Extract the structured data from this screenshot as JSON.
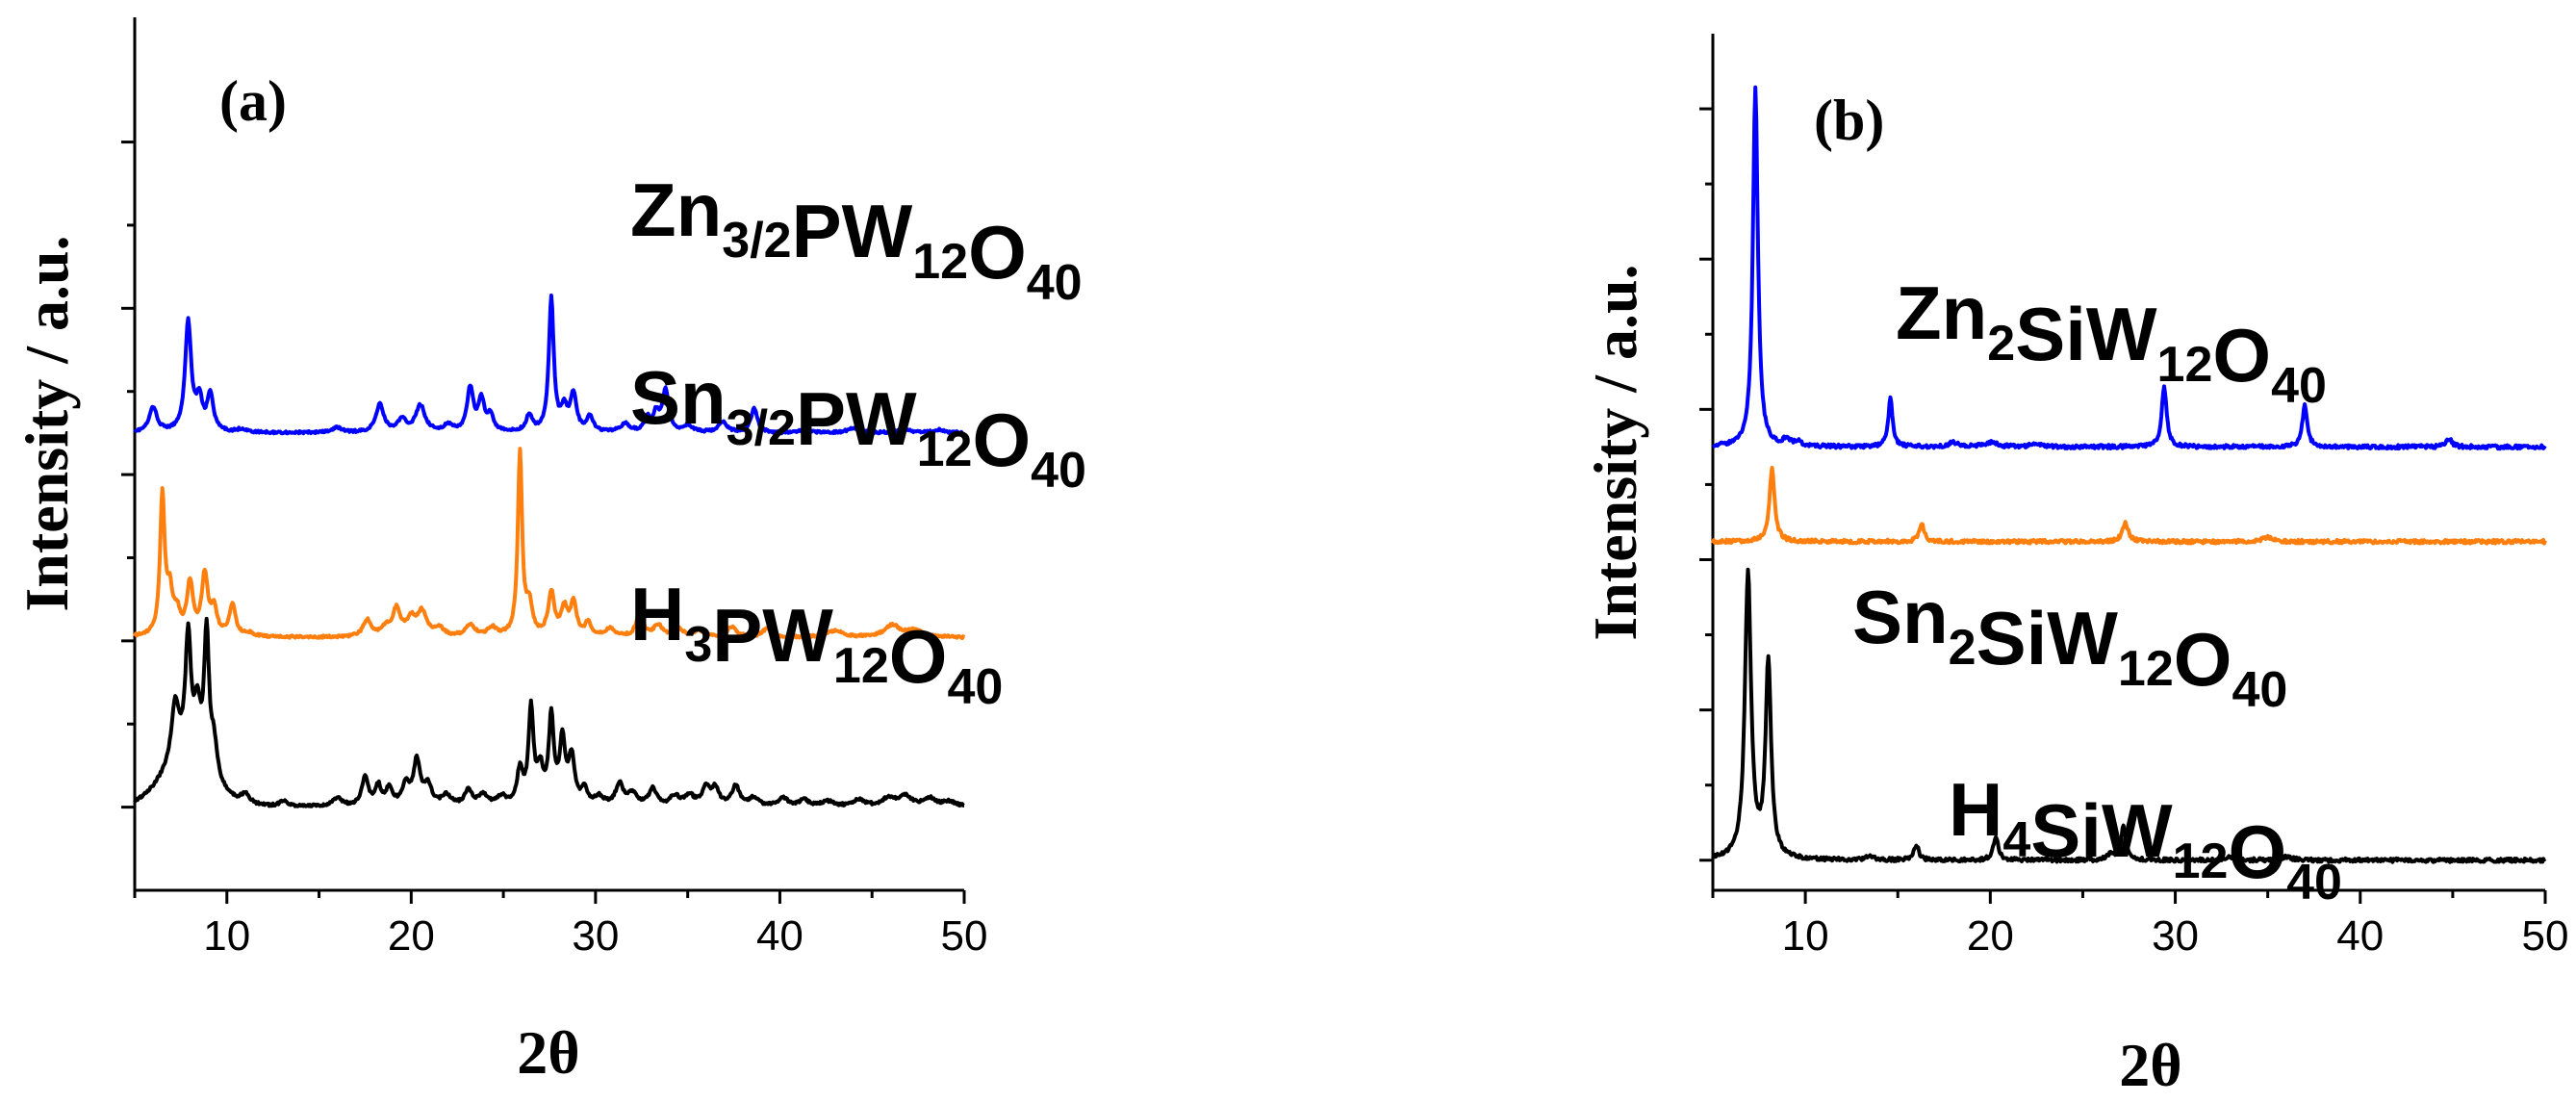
{
  "chart_data": [
    {
      "type": "line",
      "panel_label": "(a)",
      "xlabel": "2θ",
      "ylabel": "Intensity / a.u.",
      "xlim": [
        5,
        50
      ],
      "ylim": [
        -0.5,
        4.75
      ],
      "x_ticks": [
        10,
        20,
        30,
        40,
        50
      ],
      "y_ticks": [
        0,
        1,
        2,
        3,
        4
      ],
      "y_tick_labels_shown": false,
      "series": [
        {
          "name": "Zn3/2PW12O40",
          "label_main": [
            "Zn",
            "PW",
            "O"
          ],
          "label_sub": [
            "3/2",
            "12",
            "40"
          ],
          "color": "#0000ff",
          "baseline": 2.25,
          "noise_amp": 0.007,
          "hump": null,
          "peaks": [
            [
              6.0,
              0.15,
              0.25
            ],
            [
              7.9,
              0.66,
              0.2
            ],
            [
              8.5,
              0.18,
              0.2
            ],
            [
              9.1,
              0.22,
              0.2
            ],
            [
              10.8,
              0.02,
              0.3
            ],
            [
              16.0,
              0.03,
              0.3
            ],
            [
              18.3,
              0.17,
              0.25
            ],
            [
              19.5,
              0.07,
              0.3
            ],
            [
              20.5,
              0.16,
              0.3
            ],
            [
              22.0,
              0.04,
              0.3
            ],
            [
              23.2,
              0.26,
              0.2
            ],
            [
              23.8,
              0.19,
              0.2
            ],
            [
              24.3,
              0.1,
              0.2
            ],
            [
              26.4,
              0.1,
              0.2
            ],
            [
              27.6,
              0.8,
              0.16
            ],
            [
              28.3,
              0.13,
              0.2
            ],
            [
              28.8,
              0.22,
              0.2
            ],
            [
              29.7,
              0.09,
              0.2
            ],
            [
              31.6,
              0.05,
              0.3
            ],
            [
              32.8,
              0.08,
              0.2
            ],
            [
              33.3,
              0.11,
              0.2
            ],
            [
              33.8,
              0.25,
              0.2
            ],
            [
              35.0,
              0.04,
              0.3
            ],
            [
              36.9,
              0.06,
              0.3
            ],
            [
              38.6,
              0.15,
              0.2
            ],
            [
              41.4,
              0.02,
              0.3
            ],
            [
              44.0,
              0.03,
              0.4
            ],
            [
              46.8,
              0.02,
              0.4
            ],
            [
              48.6,
              0.02,
              0.4
            ]
          ]
        },
        {
          "name": "Sn3/2PW12O40",
          "label_main": [
            "Sn",
            "PW",
            "O"
          ],
          "label_sub": [
            "3/2",
            "12",
            "40"
          ],
          "color": "#ff7f0e",
          "baseline": 1.02,
          "noise_amp": 0.007,
          "hump": null,
          "peaks": [
            [
              6.5,
              0.83,
              0.15
            ],
            [
              6.9,
              0.24,
              0.2
            ],
            [
              7.3,
              0.12,
              0.2
            ],
            [
              8.0,
              0.31,
              0.2
            ],
            [
              8.8,
              0.36,
              0.2
            ],
            [
              9.3,
              0.15,
              0.2
            ],
            [
              10.3,
              0.19,
              0.2
            ],
            [
              11.2,
              0.02,
              0.3
            ],
            [
              17.6,
              0.1,
              0.25
            ],
            [
              18.6,
              0.05,
              0.3
            ],
            [
              19.2,
              0.16,
              0.25
            ],
            [
              20.0,
              0.1,
              0.3
            ],
            [
              20.6,
              0.14,
              0.3
            ],
            [
              21.5,
              0.05,
              0.3
            ],
            [
              23.2,
              0.07,
              0.3
            ],
            [
              24.4,
              0.05,
              0.3
            ],
            [
              25.9,
              1.1,
              0.14
            ],
            [
              26.4,
              0.18,
              0.2
            ],
            [
              27.6,
              0.26,
              0.2
            ],
            [
              28.3,
              0.16,
              0.2
            ],
            [
              28.8,
              0.2,
              0.2
            ],
            [
              29.6,
              0.08,
              0.2
            ],
            [
              30.8,
              0.05,
              0.3
            ],
            [
              32.4,
              0.16,
              0.2
            ],
            [
              33.4,
              0.07,
              0.3
            ],
            [
              34.5,
              0.05,
              0.3
            ],
            [
              35.6,
              0.04,
              0.3
            ],
            [
              37.4,
              0.06,
              0.3
            ],
            [
              39.3,
              0.05,
              0.3
            ],
            [
              43.0,
              0.04,
              0.5
            ],
            [
              46.1,
              0.07,
              0.5
            ],
            [
              47.3,
              0.04,
              0.5
            ]
          ]
        },
        {
          "name": "H3PW12O40",
          "label_main": [
            "H",
            "PW",
            "O"
          ],
          "label_sub": [
            "3",
            "12",
            "40"
          ],
          "color": "#000000",
          "baseline": 0.0,
          "noise_amp": 0.008,
          "hump": [
            7.8,
            0.28,
            1.3
          ],
          "peaks": [
            [
              7.2,
              0.35,
              0.25
            ],
            [
              7.9,
              0.72,
              0.18
            ],
            [
              8.4,
              0.3,
              0.2
            ],
            [
              8.9,
              0.82,
              0.16
            ],
            [
              9.3,
              0.2,
              0.2
            ],
            [
              11.0,
              0.06,
              0.3
            ],
            [
              13.1,
              0.03,
              0.3
            ],
            [
              16.0,
              0.05,
              0.3
            ],
            [
              17.5,
              0.18,
              0.2
            ],
            [
              18.2,
              0.12,
              0.2
            ],
            [
              18.8,
              0.1,
              0.2
            ],
            [
              19.7,
              0.12,
              0.25
            ],
            [
              20.3,
              0.26,
              0.22
            ],
            [
              20.9,
              0.12,
              0.25
            ],
            [
              21.9,
              0.06,
              0.3
            ],
            [
              23.1,
              0.09,
              0.25
            ],
            [
              23.9,
              0.06,
              0.3
            ],
            [
              24.9,
              0.05,
              0.3
            ],
            [
              25.9,
              0.2,
              0.2
            ],
            [
              26.5,
              0.57,
              0.16
            ],
            [
              27.0,
              0.2,
              0.2
            ],
            [
              27.6,
              0.52,
              0.16
            ],
            [
              28.2,
              0.38,
              0.18
            ],
            [
              28.7,
              0.28,
              0.2
            ],
            [
              29.4,
              0.09,
              0.2
            ],
            [
              30.2,
              0.05,
              0.3
            ],
            [
              31.3,
              0.13,
              0.25
            ],
            [
              32.0,
              0.07,
              0.3
            ],
            [
              33.1,
              0.1,
              0.25
            ],
            [
              34.3,
              0.06,
              0.3
            ],
            [
              35.1,
              0.06,
              0.3
            ],
            [
              36.0,
              0.11,
              0.25
            ],
            [
              36.5,
              0.1,
              0.25
            ],
            [
              37.6,
              0.12,
              0.25
            ],
            [
              38.6,
              0.05,
              0.3
            ],
            [
              40.2,
              0.05,
              0.3
            ],
            [
              41.3,
              0.04,
              0.3
            ],
            [
              42.6,
              0.03,
              0.4
            ],
            [
              44.3,
              0.04,
              0.4
            ],
            [
              45.9,
              0.05,
              0.4
            ],
            [
              46.8,
              0.06,
              0.4
            ],
            [
              48.1,
              0.05,
              0.4
            ],
            [
              49.2,
              0.03,
              0.4
            ]
          ]
        }
      ]
    },
    {
      "type": "line",
      "panel_label": "(b)",
      "xlabel": "2θ",
      "ylabel": "Intensity / a.u.",
      "xlim": [
        5,
        50
      ],
      "ylim": [
        -0.02,
        0.55
      ],
      "x_ticks": [
        10,
        20,
        30,
        40,
        50
      ],
      "y_ticks": [
        0,
        0.1,
        0.2,
        0.3,
        0.4,
        0.5
      ],
      "y_tick_labels_shown": false,
      "series": [
        {
          "name": "Zn2SiW12O40",
          "label_main": [
            "Zn",
            "SiW",
            "O"
          ],
          "label_sub": [
            "2",
            "12",
            "40"
          ],
          "color": "#0000ff",
          "baseline": 0.275,
          "noise_amp": 0.0012,
          "hump": null,
          "peaks": [
            [
              7.3,
              0.24,
              0.16
            ],
            [
              9.0,
              0.005,
              0.2
            ],
            [
              9.6,
              0.003,
              0.2
            ],
            [
              14.6,
              0.032,
              0.14
            ],
            [
              18.0,
              0.003,
              0.3
            ],
            [
              20.0,
              0.003,
              0.4
            ],
            [
              22.5,
              0.002,
              0.4
            ],
            [
              29.4,
              0.04,
              0.16
            ],
            [
              37.0,
              0.028,
              0.16
            ],
            [
              44.8,
              0.005,
              0.2
            ]
          ]
        },
        {
          "name": "Sn2SiW12O40",
          "label_main": [
            "Sn",
            "SiW",
            "O"
          ],
          "label_sub": [
            "2",
            "12",
            "40"
          ],
          "color": "#ff7f0e",
          "baseline": 0.212,
          "noise_amp": 0.0012,
          "hump": null,
          "peaks": [
            [
              8.2,
              0.048,
              0.17
            ],
            [
              16.3,
              0.011,
              0.17
            ],
            [
              27.3,
              0.012,
              0.2
            ],
            [
              35.0,
              0.003,
              0.3
            ]
          ]
        },
        {
          "name": "H4SiW12O40",
          "label_main": [
            "H",
            "SiW",
            "O"
          ],
          "label_sub": [
            "4",
            "12",
            "40"
          ],
          "color": "#000000",
          "baseline": 0.0,
          "noise_amp": 0.0012,
          "hump": null,
          "peaks": [
            [
              6.9,
              0.19,
              0.2
            ],
            [
              8.0,
              0.13,
              0.18
            ],
            [
              13.5,
              0.003,
              0.2
            ],
            [
              16.0,
              0.01,
              0.16
            ],
            [
              20.3,
              0.016,
              0.16
            ],
            [
              27.2,
              0.022,
              0.16
            ],
            [
              26.5,
              0.004,
              0.2
            ],
            [
              33.0,
              0.002,
              0.3
            ],
            [
              36.0,
              0.002,
              0.4
            ]
          ]
        }
      ]
    }
  ]
}
